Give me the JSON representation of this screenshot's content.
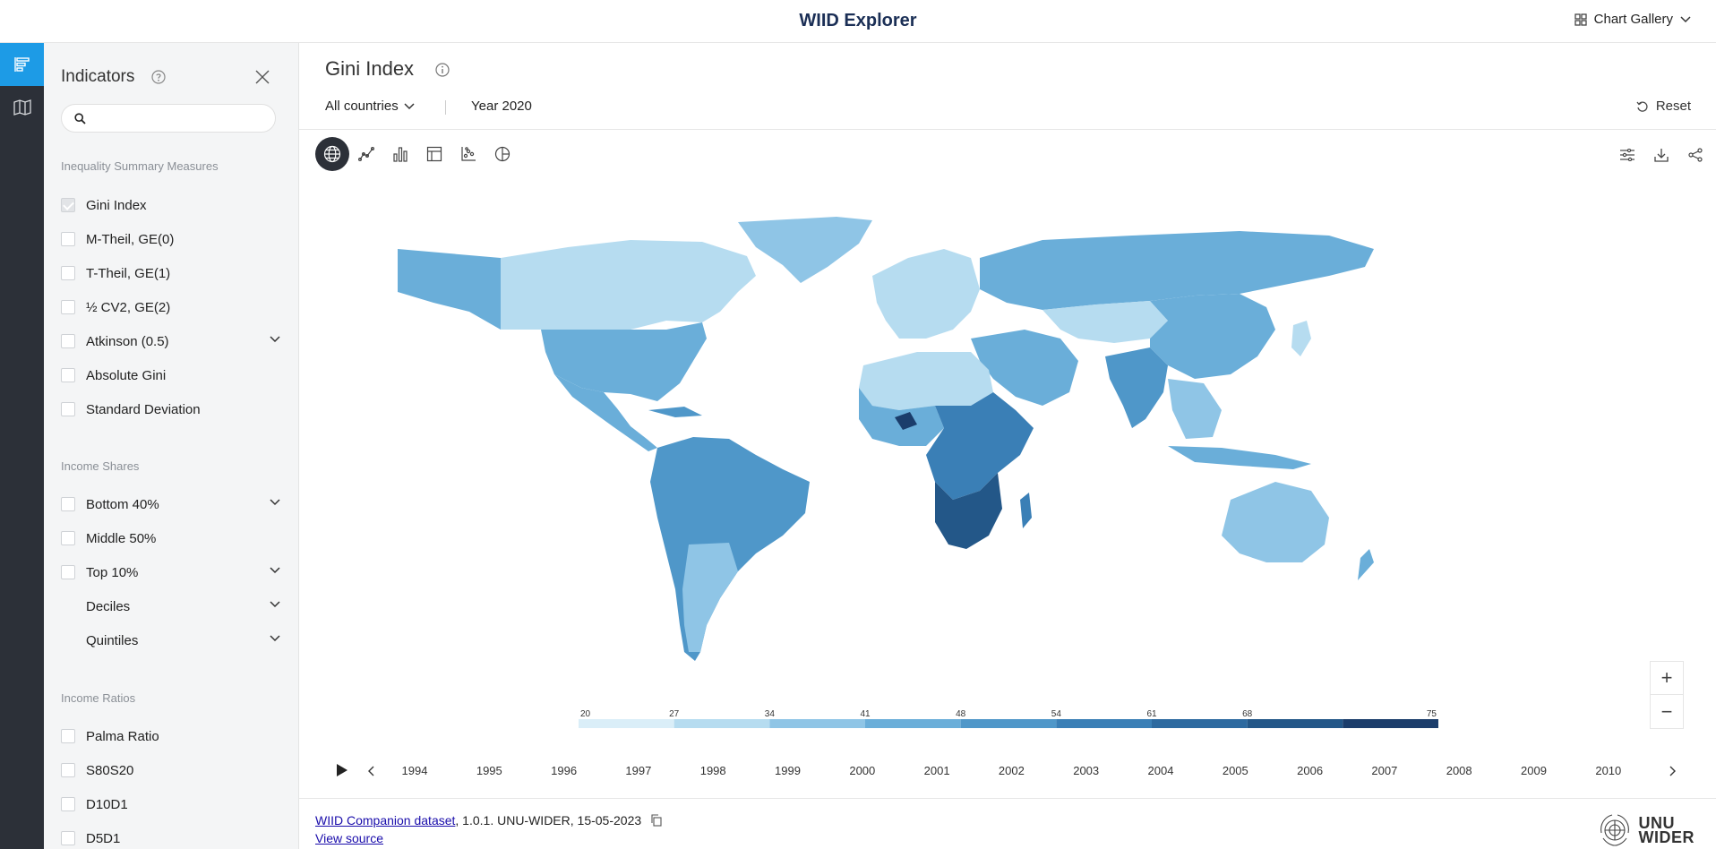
{
  "app": {
    "title": "WIID Explorer",
    "gallery_label": "Chart Gallery"
  },
  "sidebar_panel": {
    "title": "Indicators",
    "search_placeholder": "",
    "sections": {
      "summary": {
        "label": "Inequality Summary Measures",
        "items": [
          {
            "label": "Gini Index",
            "checked": true
          },
          {
            "label": "M-Theil, GE(0)"
          },
          {
            "label": "T-Theil, GE(1)"
          },
          {
            "label": "½ CV2, GE(2)"
          },
          {
            "label": "Atkinson (0.5)",
            "expandable": true
          },
          {
            "label": "Absolute Gini"
          },
          {
            "label": "Standard Deviation"
          }
        ]
      },
      "shares": {
        "label": "Income Shares",
        "items": [
          {
            "label": "Bottom 40%",
            "expandable": true
          },
          {
            "label": "Middle 50%"
          },
          {
            "label": "Top 10%",
            "expandable": true
          },
          {
            "label": "Deciles",
            "expandable": true,
            "no_checkbox": true
          },
          {
            "label": "Quintiles",
            "expandable": true,
            "no_checkbox": true
          }
        ]
      },
      "ratios": {
        "label": "Income Ratios",
        "items": [
          {
            "label": "Palma Ratio"
          },
          {
            "label": "S80S20"
          },
          {
            "label": "D10D1"
          },
          {
            "label": "D5D1"
          }
        ]
      }
    }
  },
  "main": {
    "title": "Gini Index",
    "country_filter": "All countries",
    "year_label": "Year 2020",
    "reset_label": "Reset",
    "views": [
      "globe-icon",
      "line-chart-icon",
      "bar-chart-icon",
      "table-icon",
      "scatter-icon",
      "pie-chart-icon"
    ],
    "active_view": "globe-icon",
    "legend": {
      "ticks": [
        "20",
        "27",
        "34",
        "41",
        "48",
        "54",
        "61",
        "68",
        "75"
      ],
      "colors": [
        "#daeef8",
        "#b6dcf0",
        "#8fc5e6",
        "#6aaed9",
        "#4f97c9",
        "#3a7fb6",
        "#2d6aa0",
        "#235788",
        "#1b3d6b"
      ]
    },
    "timeline": {
      "years": [
        "1994",
        "1995",
        "1996",
        "1997",
        "1998",
        "1999",
        "2000",
        "2001",
        "2002",
        "2003",
        "2004",
        "2005",
        "2006",
        "2007",
        "2008",
        "2009",
        "2010"
      ]
    },
    "footer": {
      "dataset_link": "WIID Companion dataset",
      "dataset_rest": ", 1.0.1. UNU-WIDER, 15-05-2023",
      "view_source": "View source",
      "logo_line1": "UNU",
      "logo_line2": "WIDER"
    }
  }
}
